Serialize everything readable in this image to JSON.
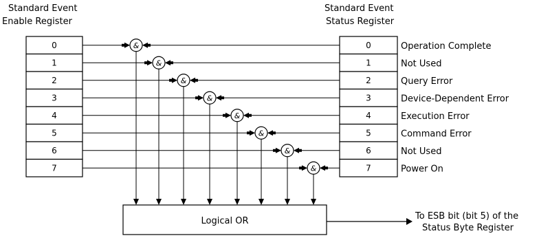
{
  "enable_register": {
    "title_line1": "Standard Event",
    "title_line2": "Enable Register",
    "bits": [
      "0",
      "1",
      "2",
      "3",
      "4",
      "5",
      "6",
      "7"
    ]
  },
  "status_register": {
    "title_line1": "Standard Event",
    "title_line2": "Status Register",
    "bits": [
      "0",
      "1",
      "2",
      "3",
      "4",
      "5",
      "6",
      "7"
    ]
  },
  "bit_labels": [
    "Operation Complete",
    "Not Used",
    "Query Error",
    "Device-Dependent Error",
    "Execution Error",
    "Command Error",
    "Not Used",
    "Power On"
  ],
  "gate_symbol": "&",
  "or_gate_label": "Logical OR",
  "output": {
    "line1": "To ESB bit (bit 5) of the",
    "line2": "Status Byte Register"
  }
}
